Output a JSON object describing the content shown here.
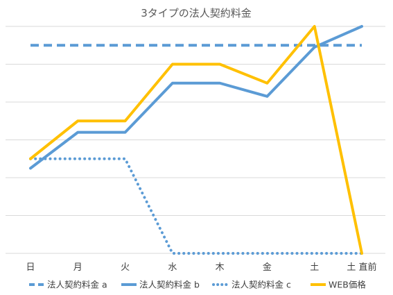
{
  "chart_data": {
    "type": "line",
    "title": "3タイプの法人契約料金",
    "categories": [
      "日",
      "月",
      "火",
      "水",
      "木",
      "金",
      "土",
      "土 直前"
    ],
    "ylim": [
      0,
      12
    ],
    "grid": true,
    "legend_position": "bottom",
    "series": [
      {
        "name": "法人契約料金 a",
        "values": [
          11,
          11,
          11,
          11,
          11,
          11,
          11,
          11
        ],
        "color": "#5B9BD5",
        "style": "dashed"
      },
      {
        "name": "法人契約料金 b",
        "values": [
          4.5,
          6.4,
          6.4,
          9,
          9,
          8.3,
          10.9,
          12
        ],
        "color": "#5B9BD5",
        "style": "solid"
      },
      {
        "name": "法人契約料金 c",
        "values": [
          5,
          5,
          5,
          0,
          0,
          0,
          0,
          0
        ],
        "color": "#5B9BD5",
        "style": "dotted"
      },
      {
        "name": "WEB価格",
        "values": [
          5,
          7,
          7,
          10,
          10,
          9,
          12,
          0
        ],
        "color": "#FFC000",
        "style": "solid"
      }
    ]
  }
}
